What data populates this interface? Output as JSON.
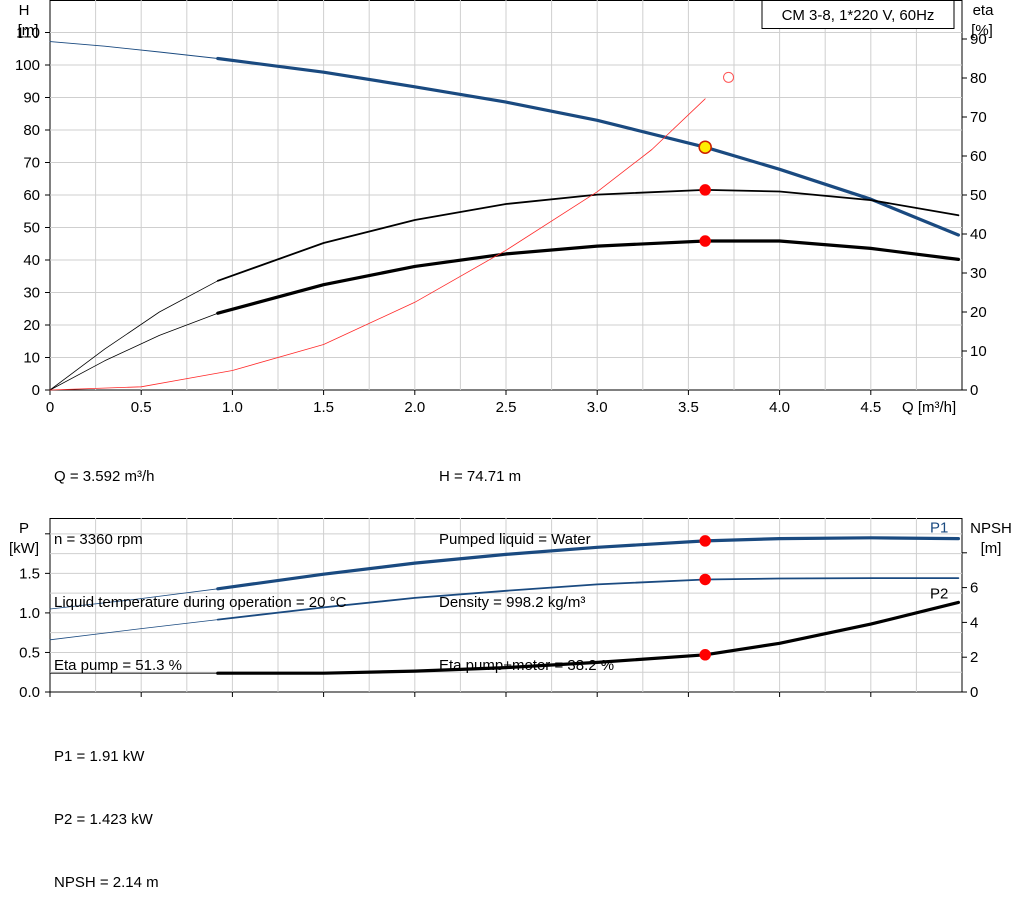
{
  "chart_data": [
    {
      "type": "line",
      "title": "CM 3-8, 1*220 V, 60Hz",
      "xlabel": "Q [m³/h]",
      "ylabel_left": [
        "H",
        "[m]"
      ],
      "ylabel_right": [
        "eta",
        "[%]"
      ],
      "xlim": [
        0,
        5.0
      ],
      "ylim_left": [
        0,
        120
      ],
      "ylim_right": [
        0,
        100
      ],
      "grid": true,
      "x_ticks": [
        0,
        0.5,
        1.0,
        1.5,
        2.0,
        2.5,
        3.0,
        3.5,
        4.0,
        4.5
      ],
      "x_tick_labels": [
        "0",
        "0.5",
        "1.0",
        "1.5",
        "2.0",
        "2.5",
        "3.0",
        "3.5",
        "4.0",
        "4.5"
      ],
      "y_left_ticks": [
        0,
        10,
        20,
        30,
        40,
        50,
        60,
        70,
        80,
        90,
        100,
        110
      ],
      "y_left_tick_labels": [
        "0",
        "10",
        "20",
        "30",
        "40",
        "50",
        "60",
        "70",
        "80",
        "90",
        "100",
        "110"
      ],
      "y_right_ticks": [
        0,
        10,
        20,
        30,
        40,
        50,
        60,
        70,
        80,
        90
      ],
      "y_right_tick_labels": [
        "0",
        "10",
        "20",
        "30",
        "40",
        "50",
        "60",
        "70",
        "80",
        "90"
      ],
      "series": [
        {
          "axis": "left",
          "color": "#1a4a80",
          "width": 3.2,
          "x": [
            0.92,
            1.5,
            2.0,
            2.5,
            3.0,
            3.592,
            4.0,
            4.5,
            4.98
          ],
          "y": [
            102.0,
            97.8,
            93.3,
            88.6,
            83.0,
            74.7,
            67.9,
            58.7,
            47.7
          ]
        },
        {
          "axis": "left",
          "color": "#1a4a80",
          "width": 0.9,
          "x": [
            0,
            0.3,
            0.6,
            0.92
          ],
          "y": [
            107.2,
            105.8,
            104.0,
            102.0
          ]
        },
        {
          "axis": "right",
          "color": "#000000",
          "width": 1.8,
          "x": [
            0.92,
            1.5,
            2.0,
            2.5,
            3.0,
            3.592,
            4.0,
            4.5,
            4.98
          ],
          "y": [
            28.0,
            37.7,
            43.6,
            47.7,
            50.1,
            51.3,
            50.9,
            48.7,
            44.8
          ]
        },
        {
          "axis": "right",
          "color": "#000000",
          "width": 0.8,
          "x": [
            0,
            0.3,
            0.6,
            0.92
          ],
          "y": [
            0,
            10.5,
            20.0,
            28.0
          ]
        },
        {
          "axis": "right",
          "color": "#000000",
          "width": 3.2,
          "x": [
            0.92,
            1.5,
            2.0,
            2.5,
            3.0,
            3.592,
            4.0,
            4.5,
            4.98
          ],
          "y": [
            19.7,
            27.0,
            31.7,
            34.9,
            36.9,
            38.2,
            38.2,
            36.3,
            33.5
          ]
        },
        {
          "axis": "right",
          "color": "#000000",
          "width": 0.8,
          "x": [
            0,
            0.3,
            0.6,
            0.92
          ],
          "y": [
            0,
            7.5,
            14.0,
            19.7
          ]
        },
        {
          "axis": "left",
          "color": "#ff2a2a",
          "width": 0.8,
          "x": [
            0,
            0.5,
            1.0,
            1.5,
            2.0,
            2.5,
            3.0,
            3.3,
            3.592
          ],
          "y": [
            0,
            1.0,
            6.0,
            14.0,
            27.0,
            43.0,
            61.0,
            74.0,
            89.6
          ]
        }
      ],
      "markers": [
        {
          "axis": "left",
          "x": 3.592,
          "y": 74.71,
          "fill": "#ffee00",
          "stroke": "#cc2200",
          "r": 6
        },
        {
          "axis": "right",
          "x": 3.592,
          "y": 51.3,
          "fill": "#ff0000",
          "stroke": "#ff0000",
          "r": 5
        },
        {
          "axis": "right",
          "x": 3.592,
          "y": 38.2,
          "fill": "#ff0000",
          "stroke": "#ff0000",
          "r": 5
        },
        {
          "axis": "left",
          "x": 3.72,
          "y": 96.2,
          "fill": "none",
          "stroke": "#ff5555",
          "r": 5
        }
      ]
    },
    {
      "type": "line",
      "ylabel_left": [
        "P",
        "[kW]"
      ],
      "ylabel_right": [
        "NPSH",
        "[m]"
      ],
      "xlim": [
        0,
        5.0
      ],
      "ylim_left": [
        0,
        2.2
      ],
      "ylim_right": [
        0,
        10
      ],
      "grid": true,
      "x_ticks": [
        0,
        0.5,
        1.0,
        1.5,
        2.0,
        2.5,
        3.0,
        3.5,
        4.0,
        4.5
      ],
      "y_left_ticks": [
        0,
        0.5,
        1.0,
        1.5,
        2.0
      ],
      "y_left_tick_labels": [
        "0.0",
        "0.5",
        "1.0",
        "1.5",
        ""
      ],
      "y_right_ticks": [
        0,
        2,
        4,
        6,
        8
      ],
      "y_right_tick_labels": [
        "0",
        "2",
        "4",
        "6",
        ""
      ],
      "series": [
        {
          "name": "P1",
          "axis": "left",
          "color": "#1a4a80",
          "width": 3.2,
          "x": [
            0.92,
            1.5,
            2.0,
            2.5,
            3.0,
            3.592,
            4.0,
            4.5,
            4.98
          ],
          "y": [
            1.305,
            1.49,
            1.63,
            1.74,
            1.83,
            1.91,
            1.94,
            1.95,
            1.94
          ]
        },
        {
          "axis": "left",
          "color": "#1a4a80",
          "width": 0.8,
          "x": [
            0,
            0.46,
            0.92
          ],
          "y": [
            1.05,
            1.17,
            1.305
          ]
        },
        {
          "axis": "left",
          "color": "#1a4a80",
          "width": 1.8,
          "x": [
            0.92,
            1.5,
            2.0,
            2.5,
            3.0,
            3.592,
            4.0,
            4.5,
            4.98
          ],
          "y": [
            0.915,
            1.07,
            1.19,
            1.28,
            1.36,
            1.423,
            1.435,
            1.44,
            1.44
          ]
        },
        {
          "axis": "left",
          "color": "#1a4a80",
          "width": 0.8,
          "x": [
            0,
            0.46,
            0.92
          ],
          "y": [
            0.66,
            0.79,
            0.915
          ]
        },
        {
          "name": "P2",
          "axis": "right",
          "color": "#000000",
          "width": 3.2,
          "x": [
            0.92,
            1.5,
            2.0,
            2.5,
            3.0,
            3.592,
            4.0,
            4.5,
            4.98
          ],
          "y": [
            1.08,
            1.08,
            1.2,
            1.4,
            1.7,
            2.14,
            2.8,
            3.9,
            5.15
          ]
        },
        {
          "axis": "right",
          "color": "#000000",
          "width": 0.8,
          "x": [
            0,
            0.92
          ],
          "y": [
            1.08,
            1.08
          ]
        }
      ],
      "markers": [
        {
          "axis": "left",
          "x": 3.592,
          "y": 1.91,
          "fill": "#ff0000",
          "stroke": "#ff0000",
          "r": 5
        },
        {
          "axis": "left",
          "x": 3.592,
          "y": 1.423,
          "fill": "#ff0000",
          "stroke": "#ff0000",
          "r": 5
        },
        {
          "axis": "right",
          "x": 3.592,
          "y": 2.14,
          "fill": "#ff0000",
          "stroke": "#ff0000",
          "r": 5
        }
      ]
    }
  ],
  "operating_point": {
    "col1": [
      "Q = 3.592 m³/h",
      "n = 3360 rpm",
      "Liquid temperature during operation = 20 °C",
      "Eta pump = 51.3 %"
    ],
    "col2": [
      "H = 74.71 m",
      "Pumped liquid = Water",
      "Density = 998.2 kg/m³",
      "Eta pump+motor = 38.2 %"
    ]
  },
  "power_values": [
    "P1 = 1.91 kW",
    "P2 = 1.423 kW",
    "NPSH = 2.14 m"
  ]
}
